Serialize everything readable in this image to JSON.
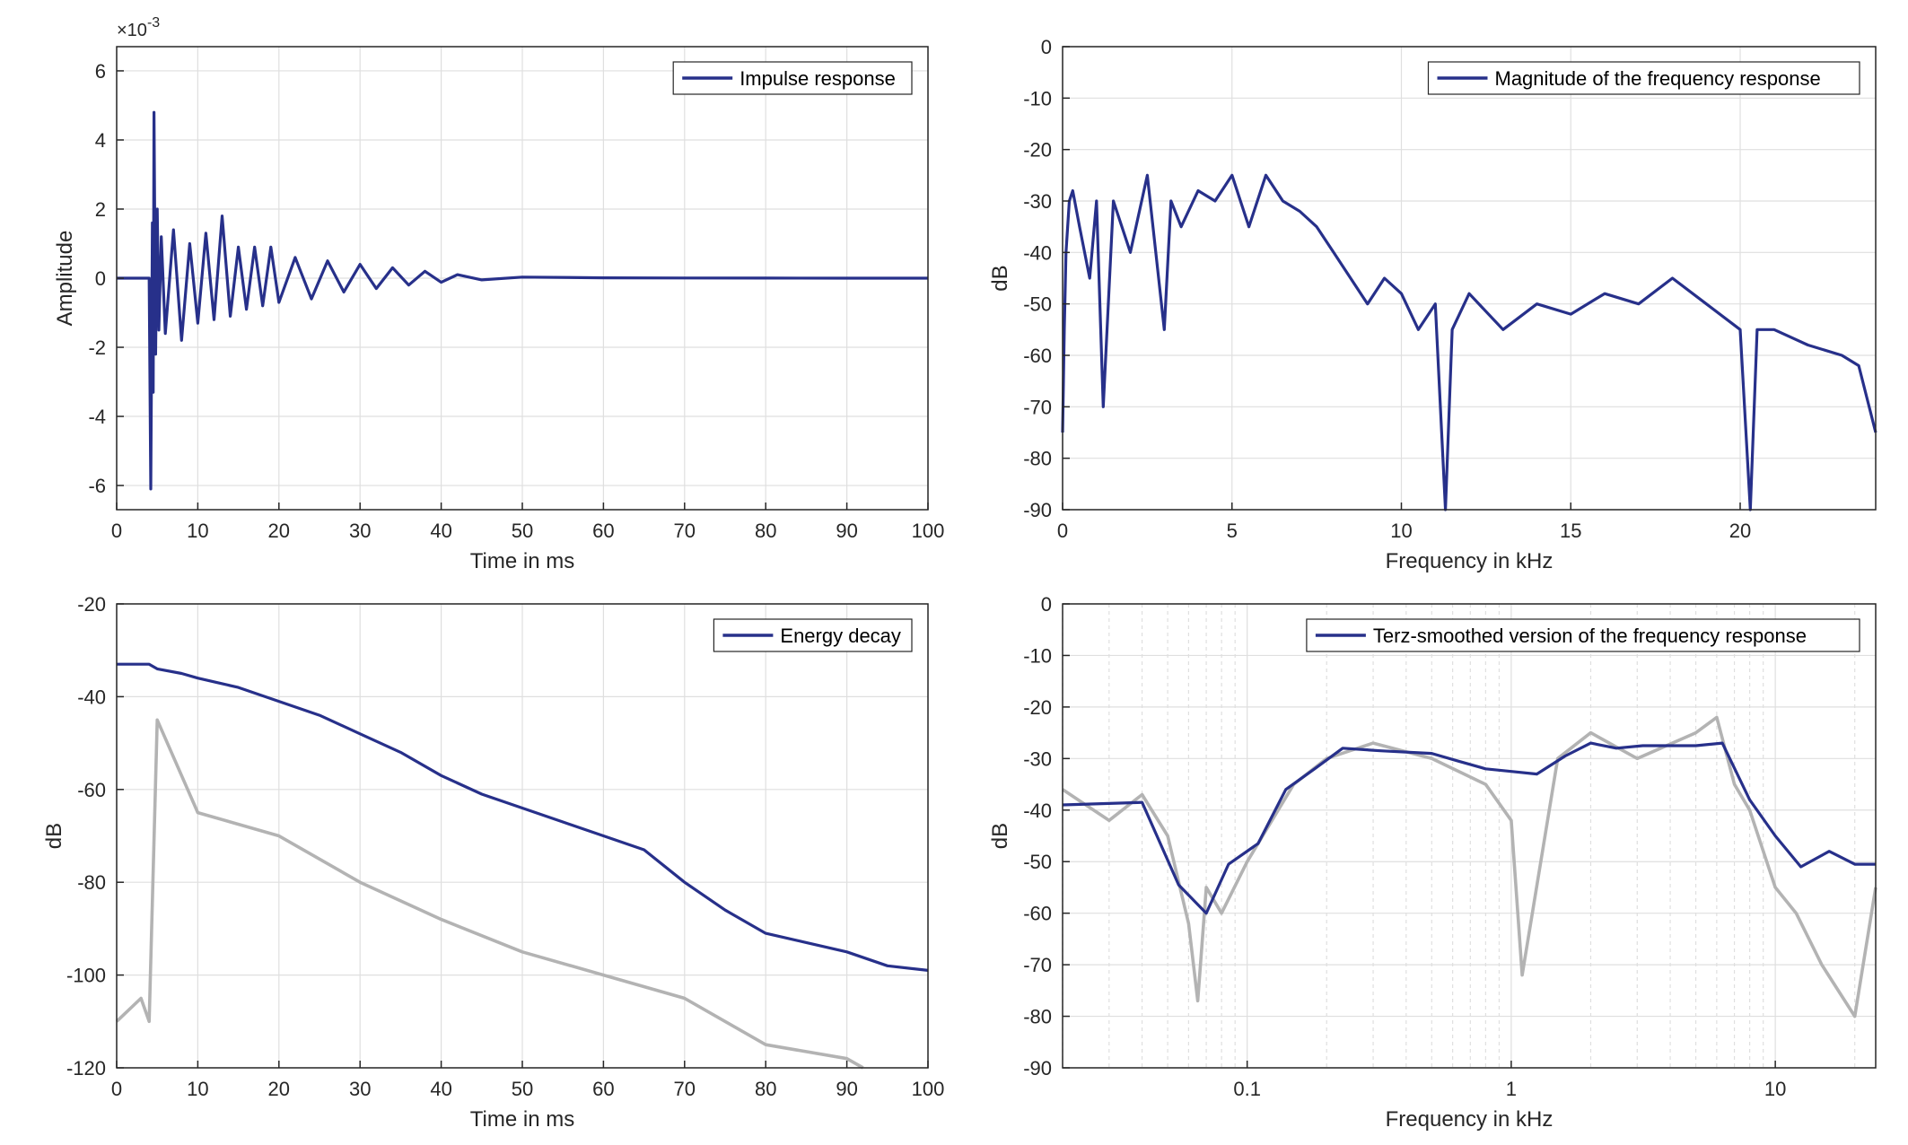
{
  "colors": {
    "primary": "#27308a",
    "secondary": "#b3b3b3",
    "grid": "#dfdfdf",
    "axis": "#262626"
  },
  "chart_data": [
    {
      "type": "line",
      "xlabel": "Time in ms",
      "ylabel": "Amplitude",
      "xlim": [
        0,
        100
      ],
      "ylim": [
        -6.7,
        6.7
      ],
      "y_multiplier": "×10",
      "y_exponent": "-3",
      "xticks": [
        0,
        10,
        20,
        30,
        40,
        50,
        60,
        70,
        80,
        90,
        100
      ],
      "yticks": [
        -6,
        -4,
        -2,
        0,
        2,
        4,
        6
      ],
      "grid": true,
      "legend_position": "top-right",
      "series": [
        {
          "name": "Impulse response",
          "color": "#27308a",
          "x": [
            0,
            4.0,
            4.2,
            4.4,
            4.5,
            4.6,
            4.8,
            5.0,
            5.2,
            5.5,
            6,
            7,
            8,
            9,
            10,
            11,
            12,
            13,
            14,
            15,
            16,
            17,
            18,
            19,
            20,
            22,
            24,
            26,
            28,
            30,
            32,
            34,
            36,
            38,
            40,
            42,
            45,
            50,
            60,
            70,
            80,
            90,
            100
          ],
          "y": [
            0,
            0,
            -6.1,
            1.6,
            -3.3,
            4.8,
            -2.2,
            2.0,
            -1.5,
            1.2,
            -1.6,
            1.4,
            -1.8,
            1.0,
            -1.3,
            1.3,
            -1.2,
            1.8,
            -1.1,
            0.9,
            -0.9,
            0.9,
            -0.8,
            0.9,
            -0.7,
            0.6,
            -0.6,
            0.5,
            -0.4,
            0.4,
            -0.3,
            0.3,
            -0.2,
            0.2,
            -0.12,
            0.1,
            -0.05,
            0.03,
            0.01,
            0.005,
            0.003,
            0.001,
            0
          ]
        }
      ]
    },
    {
      "type": "line",
      "xlabel": "Frequency in kHz",
      "ylabel": "dB",
      "xlim": [
        0,
        24
      ],
      "ylim": [
        -90,
        0
      ],
      "xticks": [
        0,
        5,
        10,
        15,
        20
      ],
      "yticks": [
        0,
        -10,
        -20,
        -30,
        -40,
        -50,
        -60,
        -70,
        -80,
        -90
      ],
      "grid": true,
      "legend_position": "top-right",
      "series": [
        {
          "name": "Magnitude of the frequency response",
          "color": "#27308a",
          "x": [
            0,
            0.05,
            0.1,
            0.2,
            0.3,
            0.5,
            0.8,
            1.0,
            1.2,
            1.5,
            2.0,
            2.5,
            3.0,
            3.2,
            3.5,
            4.0,
            4.5,
            5.0,
            5.5,
            6.0,
            6.5,
            7.0,
            7.5,
            8.0,
            8.5,
            9.0,
            9.5,
            10.0,
            10.5,
            11.0,
            11.3,
            11.5,
            12,
            13,
            14,
            15,
            16,
            17,
            18,
            19,
            20,
            20.3,
            20.5,
            21,
            22,
            23,
            23.5,
            24
          ],
          "y": [
            -75,
            -55,
            -40,
            -30,
            -28,
            -35,
            -45,
            -30,
            -70,
            -30,
            -40,
            -25,
            -55,
            -30,
            -35,
            -28,
            -30,
            -25,
            -35,
            -25,
            -30,
            -32,
            -35,
            -40,
            -45,
            -50,
            -45,
            -48,
            -55,
            -50,
            -90,
            -55,
            -48,
            -55,
            -50,
            -52,
            -48,
            -50,
            -45,
            -50,
            -55,
            -90,
            -55,
            -55,
            -58,
            -60,
            -62,
            -75
          ]
        }
      ]
    },
    {
      "type": "line",
      "xlabel": "Time in ms",
      "ylabel": "dB",
      "xlim": [
        0,
        100
      ],
      "ylim": [
        -120,
        -20
      ],
      "xticks": [
        0,
        10,
        20,
        30,
        40,
        50,
        60,
        70,
        80,
        90,
        100
      ],
      "yticks": [
        -20,
        -40,
        -60,
        -80,
        -100,
        -120
      ],
      "grid": true,
      "legend_position": "top-right",
      "series": [
        {
          "name": "Energy decay",
          "color": "#27308a",
          "x": [
            0,
            4,
            5,
            8,
            10,
            15,
            20,
            25,
            30,
            35,
            40,
            45,
            50,
            55,
            60,
            65,
            70,
            75,
            80,
            85,
            90,
            95,
            100
          ],
          "y": [
            -33,
            -33,
            -34,
            -35,
            -36,
            -38,
            -41,
            -44,
            -48,
            -52,
            -57,
            -61,
            -64,
            -67,
            -70,
            -73,
            -80,
            -86,
            -91,
            -93,
            -95,
            -98,
            -99
          ]
        },
        {
          "color": "#b3b3b3",
          "x": [
            0,
            3,
            4,
            5,
            10,
            20,
            30,
            40,
            50,
            60,
            70,
            80,
            90,
            92
          ],
          "y": [
            -110,
            -105,
            -110,
            -45,
            -65,
            -70,
            -80,
            -88,
            -95,
            -100,
            -105,
            -115,
            -118,
            -120
          ]
        }
      ]
    },
    {
      "type": "line",
      "xlabel": "Frequency in kHz",
      "ylabel": "dB",
      "xscale": "log",
      "xlim": [
        0.02,
        24
      ],
      "ylim": [
        -90,
        0
      ],
      "xticks": [
        0.1,
        1,
        10
      ],
      "xtick_labels": [
        "0.1",
        "1",
        "10"
      ],
      "yticks": [
        0,
        -10,
        -20,
        -30,
        -40,
        -50,
        -60,
        -70,
        -80,
        -90
      ],
      "grid": true,
      "legend_position": "top-right",
      "series": [
        {
          "name": "Terz-smoothed version of the frequency response",
          "color": "#27308a",
          "x": [
            0.02,
            0.04,
            0.055,
            0.07,
            0.085,
            0.11,
            0.14,
            0.18,
            0.23,
            0.32,
            0.5,
            0.63,
            0.8,
            1.0,
            1.25,
            1.6,
            2.0,
            2.5,
            3.15,
            4.0,
            5.0,
            6.3,
            8.0,
            10.0,
            12.5,
            16.0,
            20.0,
            24.0
          ],
          "y": [
            -39,
            -38.5,
            -54.5,
            -60,
            -50.5,
            -46.5,
            -36,
            -32,
            -28,
            -28.5,
            -29,
            -30.5,
            -32,
            -32.5,
            -33,
            -29.5,
            -27,
            -28,
            -27.5,
            -27.5,
            -27.5,
            -27,
            -38,
            -45,
            -51,
            -48,
            -50.5,
            -50.5
          ]
        },
        {
          "color": "#b3b3b3",
          "x": [
            0.02,
            0.03,
            0.04,
            0.05,
            0.06,
            0.065,
            0.07,
            0.08,
            0.1,
            0.15,
            0.2,
            0.3,
            0.5,
            0.8,
            1.0,
            1.1,
            1.5,
            2.0,
            3.0,
            5.0,
            6.0,
            7.0,
            8.0,
            10.0,
            12.0,
            15.0,
            20.0,
            24.0
          ],
          "y": [
            -36,
            -42,
            -37,
            -45,
            -62,
            -77,
            -55,
            -60,
            -50,
            -35,
            -30,
            -27,
            -30,
            -35,
            -42,
            -72,
            -30,
            -25,
            -30,
            -25,
            -22,
            -35,
            -40,
            -55,
            -60,
            -70,
            -80,
            -55
          ]
        }
      ]
    }
  ]
}
